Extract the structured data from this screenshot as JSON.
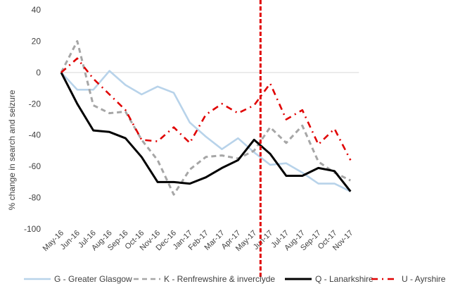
{
  "chart_data": {
    "type": "line",
    "ylabel": "% change in search and seizure",
    "xlabel": "",
    "ylim": [
      -100,
      40
    ],
    "yticks": [
      40,
      20,
      0,
      -20,
      -40,
      -60,
      -80,
      -100
    ],
    "grid": false,
    "legend_position": "bottom",
    "categories": [
      "May-16",
      "Jun-16",
      "Jul-16",
      "Aug-16",
      "Sep-16",
      "Oct-16",
      "Nov-16",
      "Dec-16",
      "Jan-17",
      "Feb-17",
      "Mar-17",
      "Apr-17",
      "May-17",
      "Jun-17",
      "Jul-17",
      "Aug-17",
      "Sep-17",
      "Oct-17",
      "Nov-17"
    ],
    "vertical_marker": {
      "after_category": "May-17",
      "color": "#e00000",
      "style": "dashed"
    },
    "series": [
      {
        "name": "G - Greater Glasgow",
        "color": "#b8d3ea",
        "dash": "solid",
        "values": [
          0,
          -11,
          -11,
          1,
          -8,
          -14,
          -9,
          -13,
          -32,
          -41,
          -49,
          -42,
          -51,
          -59,
          -58,
          -64,
          -71,
          -71,
          -76
        ]
      },
      {
        "name": "K - Renfrewshire & inverclyde",
        "color": "#a6a6a6",
        "dash": "dashed",
        "values": [
          0,
          20,
          -21,
          -26,
          -25,
          -43,
          -56,
          -78,
          -62,
          -54,
          -53,
          -55,
          -50,
          -35,
          -45,
          -34,
          -57,
          -64,
          -69
        ]
      },
      {
        "name": "Q - Lanarkshire",
        "color": "#000000",
        "dash": "solid",
        "values": [
          0,
          -20,
          -37,
          -38,
          -42,
          -54,
          -70,
          -70,
          -71,
          -67,
          -61,
          -56,
          -43,
          -52,
          -66,
          -66,
          -61,
          -63,
          -76
        ]
      },
      {
        "name": "U - Ayrshire",
        "color": "#e00000",
        "dash": "dashdot",
        "values": [
          0,
          9,
          -4,
          -14,
          -24,
          -43,
          -44,
          -35,
          -45,
          -27,
          -20,
          -26,
          -21,
          -7,
          -30,
          -24,
          -46,
          -36,
          -56
        ]
      }
    ]
  }
}
